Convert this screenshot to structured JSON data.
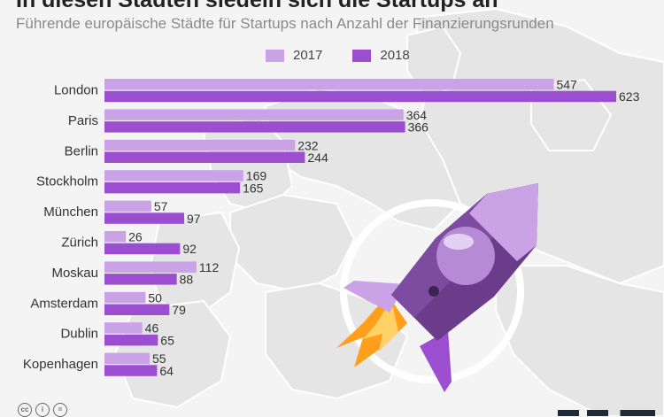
{
  "header": {
    "title": "In diesen Städten siedeln sich die Startups an",
    "subtitle": "Führende europäische Städte für Startups nach Anzahl der Finanzierungsrunden"
  },
  "colors": {
    "series_2017": "#c9a3e6",
    "series_2018": "#9b4fd0",
    "background": "#f4f4f4",
    "map_land": "#e4e4e4"
  },
  "footer": {
    "license_icons": [
      "cc-icon",
      "attribution-icon",
      "no-derivatives-icon"
    ]
  },
  "chart_data": {
    "type": "bar",
    "orientation": "horizontal",
    "title": "In diesen Städten siedeln sich die Startups an",
    "subtitle": "Führende europäische Städte für Startups nach Anzahl der Finanzierungsrunden",
    "categories": [
      "London",
      "Paris",
      "Berlin",
      "Stockholm",
      "München",
      "Zürich",
      "Moskau",
      "Amsterdam",
      "Dublin",
      "Kopenhagen"
    ],
    "series": [
      {
        "name": "2017",
        "values": [
          547,
          364,
          232,
          169,
          57,
          26,
          112,
          50,
          46,
          55
        ]
      },
      {
        "name": "2018",
        "values": [
          623,
          366,
          244,
          165,
          97,
          92,
          88,
          79,
          65,
          64
        ]
      }
    ],
    "xlim": [
      0,
      623
    ],
    "legend_position": "top",
    "grid": false,
    "data_labels": true
  }
}
